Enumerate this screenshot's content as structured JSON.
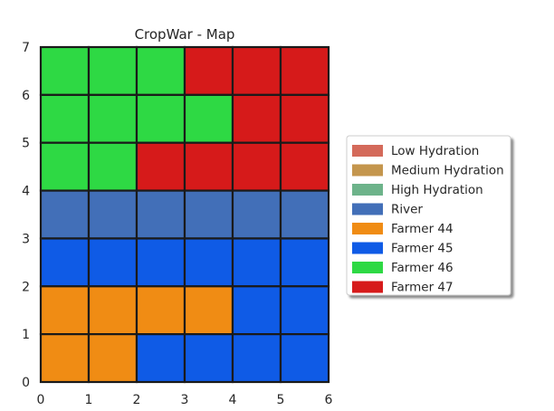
{
  "chart_data": {
    "type": "heatmap",
    "title": "CropWar - Map",
    "xlabel": "",
    "ylabel": "",
    "xlim": [
      0,
      6
    ],
    "ylim": [
      0,
      7
    ],
    "xticks": [
      "0",
      "1",
      "2",
      "3",
      "4",
      "5",
      "6"
    ],
    "yticks": [
      "0",
      "1",
      "2",
      "3",
      "4",
      "5",
      "6",
      "7"
    ],
    "grid": false,
    "legend_position": "right",
    "categories": [
      {
        "key": "low",
        "name": "Low Hydration",
        "color": "#d46a5a"
      },
      {
        "key": "medium",
        "name": "Medium Hydration",
        "color": "#c4964d"
      },
      {
        "key": "high",
        "name": "High Hydration",
        "color": "#6db38a"
      },
      {
        "key": "river",
        "name": "River",
        "color": "#426fb8"
      },
      {
        "key": "f44",
        "name": "Farmer 44",
        "color": "#f08c14"
      },
      {
        "key": "f45",
        "name": "Farmer 45",
        "color": "#0f5be6"
      },
      {
        "key": "f46",
        "name": "Farmer 46",
        "color": "#2ed944"
      },
      {
        "key": "f47",
        "name": "Farmer 47",
        "color": "#d61a1a"
      }
    ],
    "grid_rows_top_to_bottom": [
      [
        "f46",
        "f46",
        "f46",
        "f47",
        "f47",
        "f47"
      ],
      [
        "f46",
        "f46",
        "f46",
        "f46",
        "f47",
        "f47"
      ],
      [
        "f46",
        "f46",
        "f47",
        "f47",
        "f47",
        "f47"
      ],
      [
        "river",
        "river",
        "river",
        "river",
        "river",
        "river"
      ],
      [
        "f45",
        "f45",
        "f45",
        "f45",
        "f45",
        "f45"
      ],
      [
        "f44",
        "f44",
        "f44",
        "f44",
        "f45",
        "f45"
      ],
      [
        "f44",
        "f44",
        "f45",
        "f45",
        "f45",
        "f45"
      ]
    ]
  }
}
